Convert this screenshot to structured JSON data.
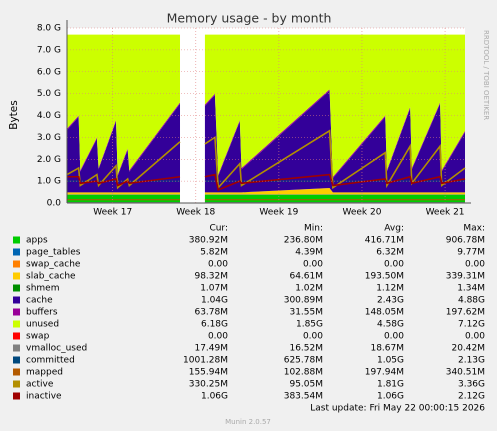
{
  "chart_data": {
    "type": "area",
    "title": "Memory usage - by month",
    "y_label": "Bytes",
    "side_text": "RRDTOOL / TOBI OETIKER",
    "x": [
      16.45,
      16.59,
      16.61,
      16.81,
      16.83,
      17.04,
      17.06,
      17.18,
      17.2,
      17.81,
      18.0,
      18.11,
      18.23,
      18.27,
      18.53,
      18.55,
      19.61,
      19.65,
      20.28,
      20.3,
      20.58,
      20.6,
      20.94,
      20.96,
      21.24
    ],
    "xlim": [
      16.45,
      21.24
    ],
    "xticks": [
      {
        "value": 17,
        "label": "Week 17"
      },
      {
        "value": 18,
        "label": "Week 18"
      },
      {
        "value": 19,
        "label": "Week 19"
      },
      {
        "value": 20,
        "label": "Week 20"
      },
      {
        "value": 21,
        "label": "Week 21"
      }
    ],
    "ylim": [
      0,
      8
    ],
    "yticks": [
      {
        "value": 0,
        "label": "0.0"
      },
      {
        "value": 1,
        "label": "1.0 G"
      },
      {
        "value": 2,
        "label": "2.0 G"
      },
      {
        "value": 3,
        "label": "3.0 G"
      },
      {
        "value": 4,
        "label": "4.0 G"
      },
      {
        "value": 5,
        "label": "5.0 G"
      },
      {
        "value": 6,
        "label": "6.0 G"
      },
      {
        "value": 7,
        "label": "7.0 G"
      },
      {
        "value": 8,
        "label": "8.0 G"
      }
    ],
    "grid": true,
    "series": [
      {
        "name": "apps",
        "color": "#00cc00",
        "draw": "stack",
        "values": [
          0.38,
          0.38,
          0.38,
          0.38,
          0.38,
          0.38,
          0.38,
          0.38,
          0.38,
          0.38,
          null,
          0.38,
          0.38,
          0.38,
          0.38,
          0.38,
          0.38,
          0.38,
          0.38,
          0.38,
          0.38,
          0.38,
          0.38,
          0.38,
          0.38
        ]
      },
      {
        "name": "page_tables",
        "color": "#0066b3",
        "draw": "stack",
        "values": [
          0.006,
          0.006,
          0.006,
          0.006,
          0.006,
          0.006,
          0.006,
          0.006,
          0.006,
          0.006,
          null,
          0.006,
          0.006,
          0.006,
          0.006,
          0.006,
          0.006,
          0.006,
          0.006,
          0.006,
          0.006,
          0.006,
          0.006,
          0.006,
          0.006
        ]
      },
      {
        "name": "swap_cache",
        "color": "#ff8000",
        "draw": "stack",
        "values": [
          0,
          0,
          0,
          0,
          0,
          0,
          0,
          0,
          0,
          0,
          null,
          0,
          0,
          0,
          0,
          0,
          0,
          0,
          0,
          0,
          0,
          0,
          0,
          0,
          0
        ]
      },
      {
        "name": "slab_cache",
        "color": "#ffcc00",
        "draw": "stack",
        "values": [
          0.1,
          0.1,
          0.1,
          0.1,
          0.1,
          0.1,
          0.1,
          0.1,
          0.1,
          0.1,
          null,
          0.1,
          0.1,
          0.1,
          0.1,
          0.1,
          0.3,
          0.1,
          0.1,
          0.1,
          0.1,
          0.1,
          0.1,
          0.1,
          0.1
        ]
      },
      {
        "name": "shmem",
        "color": "#008f00",
        "draw": "stack",
        "values": [
          0.001,
          0.001,
          0.001,
          0.001,
          0.001,
          0.001,
          0.001,
          0.001,
          0.001,
          0.001,
          null,
          0.001,
          0.001,
          0.001,
          0.001,
          0.001,
          0.001,
          0.001,
          0.001,
          0.001,
          0.001,
          0.001,
          0.001,
          0.001,
          0.001
        ]
      },
      {
        "name": "cache",
        "color": "#330099",
        "draw": "stack",
        "values": [
          2.85,
          3.45,
          0.95,
          2.45,
          1.05,
          3.25,
          0.75,
          1.95,
          0.95,
          4.05,
          null,
          3.95,
          4.45,
          0.75,
          3.25,
          1.05,
          4.45,
          0.65,
          3.45,
          0.95,
          3.85,
          1.05,
          4.05,
          0.95,
          2.75
        ]
      },
      {
        "name": "buffers",
        "color": "#990099",
        "draw": "stack",
        "values": [
          0.06,
          0.06,
          0.06,
          0.06,
          0.06,
          0.06,
          0.06,
          0.06,
          0.06,
          0.06,
          null,
          0.06,
          0.06,
          0.06,
          0.06,
          0.06,
          0.06,
          0.06,
          0.06,
          0.06,
          0.06,
          0.06,
          0.06,
          0.06,
          0.06
        ]
      },
      {
        "name": "unused",
        "color": "#ccff00",
        "draw": "stack",
        "values": [
          4.3,
          3.7,
          6.2,
          4.7,
          6.1,
          3.9,
          6.4,
          5.2,
          6.2,
          3.1,
          null,
          3.2,
          2.7,
          6.4,
          3.9,
          6.1,
          2.5,
          6.5,
          3.7,
          6.2,
          3.3,
          6.1,
          3.1,
          6.2,
          4.4
        ]
      },
      {
        "name": "swap",
        "color": "#ff0000",
        "draw": "stack",
        "values": [
          0,
          0,
          0,
          0,
          0,
          0,
          0,
          0,
          0,
          0,
          null,
          0,
          0,
          0,
          0,
          0,
          0,
          0,
          0,
          0,
          0,
          0,
          0,
          0,
          0
        ]
      },
      {
        "name": "vmalloc_used",
        "color": "#808080",
        "draw": "line",
        "values": [
          0.017,
          0.017,
          0.017,
          0.017,
          0.017,
          0.017,
          0.017,
          0.017,
          0.017,
          0.017,
          null,
          0.017,
          0.017,
          0.017,
          0.017,
          0.017,
          0.017,
          0.017,
          0.017,
          0.017,
          0.017,
          0.017,
          0.017,
          0.017,
          0.017
        ]
      },
      {
        "name": "committed",
        "color": "#00487d",
        "draw": "line",
        "values": [
          1.0,
          1.0,
          1.0,
          1.0,
          1.0,
          1.0,
          1.0,
          1.0,
          1.0,
          1.0,
          null,
          1.0,
          1.0,
          1.0,
          1.0,
          1.0,
          1.0,
          1.0,
          1.0,
          1.0,
          1.0,
          1.0,
          1.0,
          1.0,
          1.0
        ]
      },
      {
        "name": "mapped",
        "color": "#b35a00",
        "draw": "line",
        "values": [
          0.15,
          0.15,
          0.15,
          0.15,
          0.15,
          0.15,
          0.15,
          0.15,
          0.15,
          0.15,
          null,
          0.15,
          0.15,
          0.15,
          0.15,
          0.15,
          0.15,
          0.15,
          0.15,
          0.15,
          0.15,
          0.15,
          0.15,
          0.15,
          0.15
        ]
      },
      {
        "name": "active",
        "color": "#b38f00",
        "draw": "line",
        "values": [
          1.3,
          1.6,
          0.8,
          1.3,
          0.8,
          1.7,
          0.7,
          1.1,
          0.8,
          2.8,
          null,
          2.7,
          3.0,
          0.7,
          1.8,
          0.8,
          3.3,
          0.7,
          2.3,
          0.8,
          2.6,
          0.9,
          2.6,
          0.8,
          1.6
        ]
      },
      {
        "name": "inactive",
        "color": "#a00000",
        "draw": "line",
        "values": [
          1.2,
          1.2,
          0.9,
          1.0,
          0.9,
          1.1,
          0.8,
          1.0,
          0.9,
          1.2,
          null,
          1.2,
          1.3,
          0.6,
          1.0,
          0.9,
          1.3,
          0.8,
          1.1,
          0.9,
          1.2,
          0.9,
          1.2,
          0.9,
          1.1
        ]
      }
    ]
  },
  "stats": {
    "columns": [
      "Cur:",
      "Min:",
      "Avg:",
      "Max:"
    ],
    "rows": [
      [
        "380.92M",
        "236.80M",
        "416.71M",
        "906.78M"
      ],
      [
        "5.82M",
        "4.39M",
        "6.32M",
        "9.77M"
      ],
      [
        "0.00",
        "0.00",
        "0.00",
        "0.00"
      ],
      [
        "98.32M",
        "64.61M",
        "193.50M",
        "339.31M"
      ],
      [
        "1.07M",
        "1.02M",
        "1.12M",
        "1.34M"
      ],
      [
        "1.04G",
        "300.89M",
        "2.43G",
        "4.88G"
      ],
      [
        "63.78M",
        "31.55M",
        "148.05M",
        "197.62M"
      ],
      [
        "6.18G",
        "1.85G",
        "4.58G",
        "7.12G"
      ],
      [
        "0.00",
        "0.00",
        "0.00",
        "0.00"
      ],
      [
        "17.49M",
        "16.52M",
        "18.67M",
        "20.42M"
      ],
      [
        "1001.28M",
        "625.78M",
        "1.05G",
        "2.13G"
      ],
      [
        "155.94M",
        "102.88M",
        "197.94M",
        "340.51M"
      ],
      [
        "330.25M",
        "95.05M",
        "1.81G",
        "3.36G"
      ],
      [
        "1.06G",
        "383.54M",
        "1.06G",
        "2.12G"
      ]
    ]
  },
  "last_update": "Last update: Fri May 22 00:00:15 2026",
  "footer": "Munin 2.0.57"
}
